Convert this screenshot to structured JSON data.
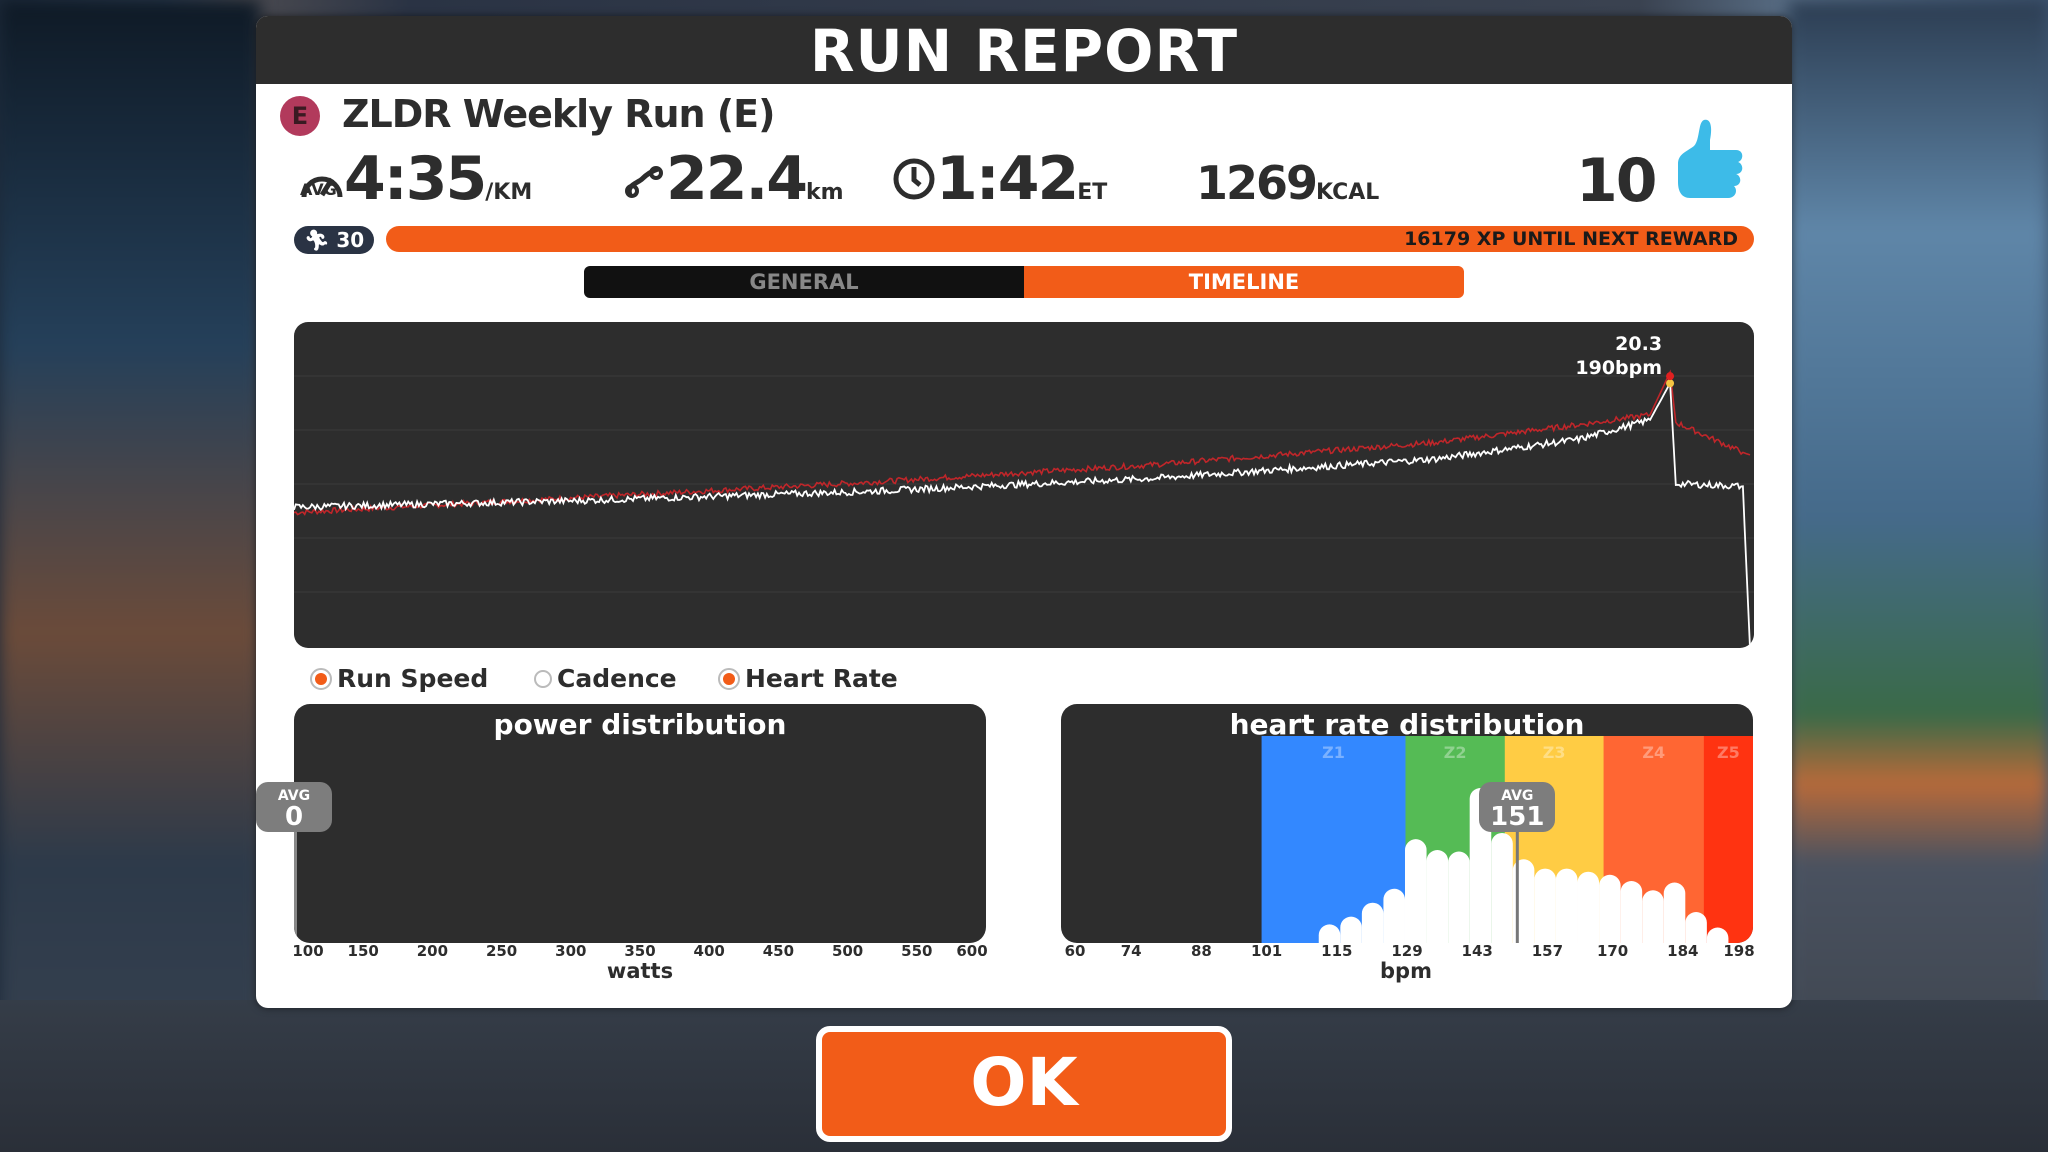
{
  "window": {
    "title": "RUN REPORT"
  },
  "event": {
    "badge": "E",
    "name": "ZLDR Weekly Run (E)",
    "badge_color": "#b23a5c"
  },
  "stats": {
    "pace": {
      "icon": "speedometer-icon",
      "icon_label": "AVG",
      "value": "4:35",
      "unit": "/KM"
    },
    "distance": {
      "icon": "route-icon",
      "value": "22.4",
      "unit": "km"
    },
    "time": {
      "icon": "clock-icon",
      "value": "1:42",
      "unit": "ET"
    },
    "calories": {
      "value": "1269",
      "unit": "KCAL"
    },
    "rideons": {
      "value": "10",
      "icon": "thumbs-up-icon"
    }
  },
  "xp": {
    "level": "30",
    "level_icon": "runner-icon",
    "text": "16179 XP UNTIL NEXT REWARD",
    "progress": 1.0
  },
  "tabs": [
    {
      "label": "GENERAL",
      "active": false
    },
    {
      "label": "TIMELINE",
      "active": true
    }
  ],
  "colors": {
    "accent": "#f25c18",
    "panel_dark": "#2d2d2d",
    "speed_line": "#ffffff",
    "hr_line": "#c0262a",
    "z1": "#3388ff",
    "z2": "#55bb55",
    "z3": "#ffcc44",
    "z4": "#ff6633",
    "z5": "#ff3311"
  },
  "timeline": {
    "peak_speed_label": "20.3",
    "peak_hr_label": "190bpm",
    "legend": [
      {
        "label": "Run Speed",
        "selected": true
      },
      {
        "label": "Cadence",
        "selected": false
      },
      {
        "label": "Heart Rate",
        "selected": true
      }
    ]
  },
  "chart_data": [
    {
      "type": "line",
      "title": "",
      "grid": true,
      "x_unit": "minutes",
      "x": [
        0,
        20,
        40,
        60,
        80,
        90,
        95,
        96.4,
        96.8,
        101.5,
        102
      ],
      "series": [
        {
          "name": "Run Speed",
          "values": [
            10.8,
            11.3,
            12.0,
            13.0,
            14.5,
            16.0,
            17.5,
            20.3,
            12.6,
            12.4,
            0
          ],
          "ylim": [
            0,
            25
          ]
        },
        {
          "name": "Heart Rate",
          "values": [
            134,
            140,
            146,
            153,
            162,
            169,
            173,
            190,
            170,
            158,
            157
          ],
          "ylim": [
            80,
            210
          ]
        }
      ]
    },
    {
      "type": "bar",
      "title": "power distribution",
      "xlabel": "watts",
      "xlim": [
        100,
        600
      ],
      "ticks": [
        "100",
        "150",
        "200",
        "250",
        "300",
        "350",
        "400",
        "450",
        "500",
        "550",
        "600"
      ],
      "avg_label": "AVG",
      "avg": "0",
      "values": []
    },
    {
      "type": "bar",
      "title": "heart rate distribution",
      "xlabel": "bpm",
      "xlim": [
        60,
        198
      ],
      "ticks": [
        "60",
        "74",
        "88",
        "101",
        "115",
        "129",
        "143",
        "157",
        "170",
        "184",
        "198"
      ],
      "zones": [
        {
          "label": "Z1",
          "from": 100,
          "to": 128.7
        },
        {
          "label": "Z2",
          "from": 128.7,
          "to": 148.5
        },
        {
          "label": "Z3",
          "from": 148.5,
          "to": 168.2
        },
        {
          "label": "Z4",
          "from": 168.2,
          "to": 188.2
        },
        {
          "label": "Z5",
          "from": 188.2,
          "to": 198
        }
      ],
      "avg_label": "AVG",
      "avg": "151",
      "bin_start": 111.4,
      "bin_width": 4.3,
      "values": [
        12,
        17,
        26,
        35,
        67,
        60,
        59,
        100,
        71,
        54,
        48,
        48,
        46,
        44,
        40,
        34,
        39,
        20,
        10
      ]
    }
  ],
  "ok_button": {
    "label": "OK"
  }
}
